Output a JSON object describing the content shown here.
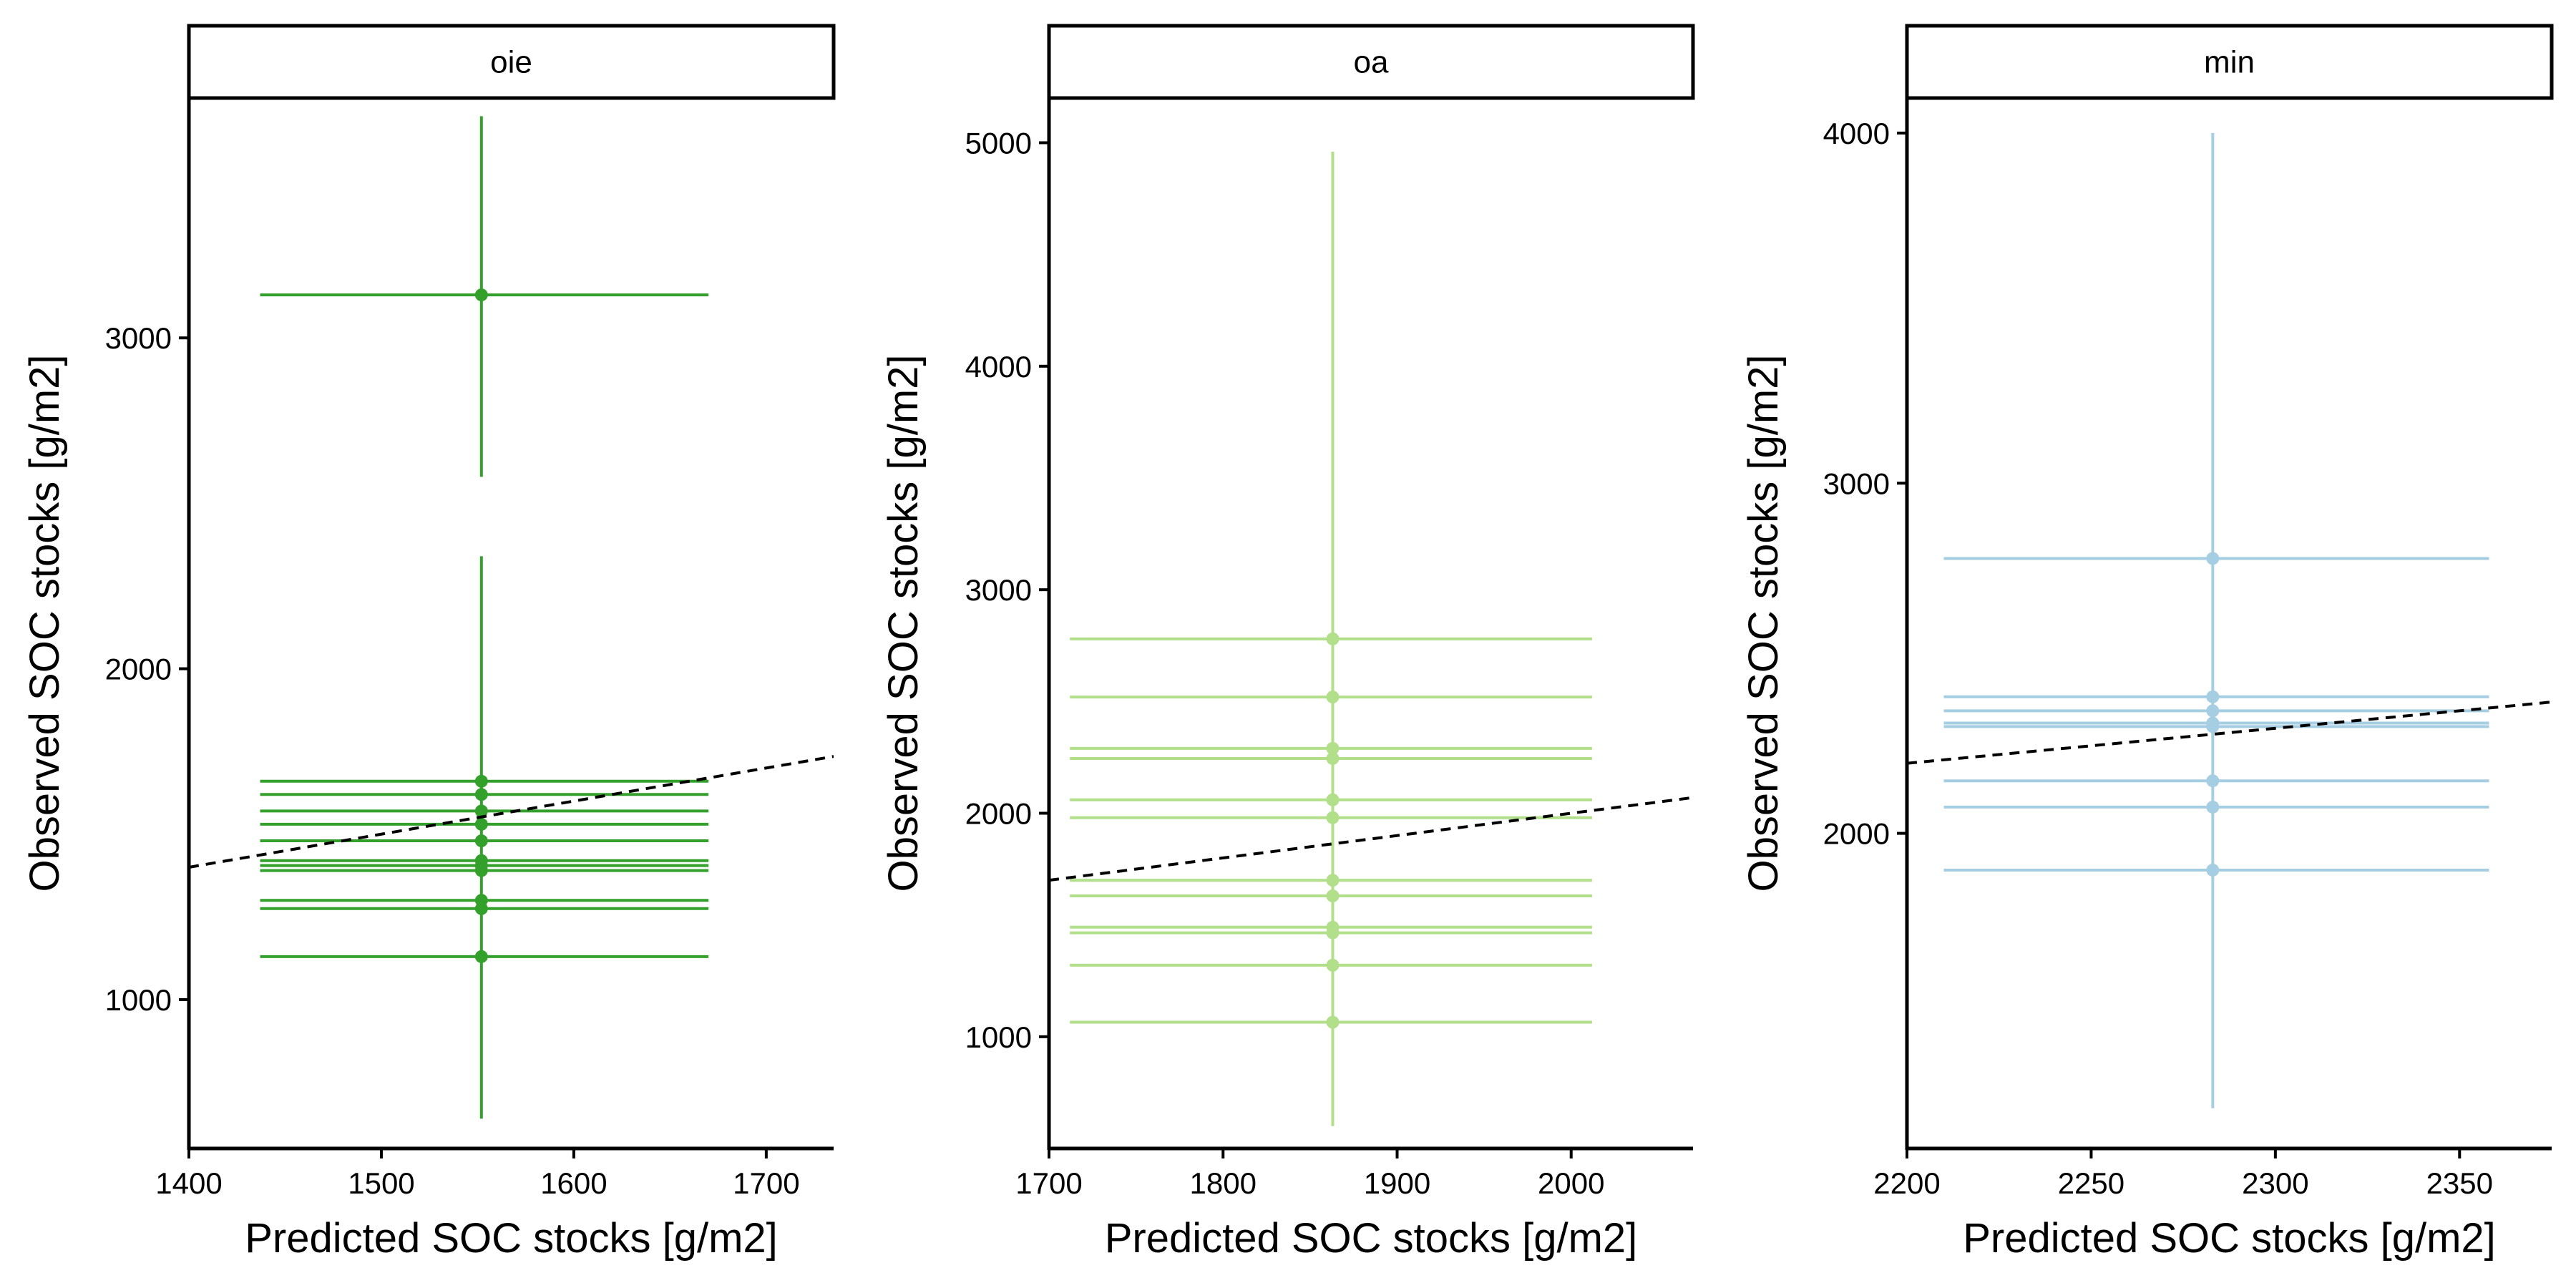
{
  "chart_data": [
    {
      "type": "scatter",
      "panel_label": "oie",
      "xlabel": "Predicted SOC stocks [g/m2]",
      "ylabel": "Observed SOC stocks [g/m2]",
      "xlim": [
        1400,
        1735
      ],
      "ylim": [
        550,
        3725
      ],
      "xticks": [
        1400,
        1500,
        1600,
        1700
      ],
      "yticks": [
        1000,
        2000,
        3000
      ],
      "color": "#33a02c",
      "reference_line": {
        "style": "dashed",
        "color": "#000000",
        "from": [
          1400,
          1400
        ],
        "to": [
          1735,
          1735
        ]
      },
      "points": [
        {
          "x": 1552,
          "y": 3130,
          "x_err": [
            1437,
            1670
          ],
          "y_err": [
            2580,
            3670
          ]
        },
        {
          "x": 1552,
          "y": 1660,
          "x_err": [
            1437,
            1670
          ],
          "y_err": [
            640,
            2340
          ]
        },
        {
          "x": 1552,
          "y": 1620,
          "x_err": [
            1437,
            1670
          ]
        },
        {
          "x": 1552,
          "y": 1570,
          "x_err": [
            1437,
            1670
          ]
        },
        {
          "x": 1552,
          "y": 1530,
          "x_err": [
            1437,
            1670
          ]
        },
        {
          "x": 1552,
          "y": 1480,
          "x_err": [
            1437,
            1670
          ]
        },
        {
          "x": 1552,
          "y": 1420,
          "x_err": [
            1437,
            1670
          ]
        },
        {
          "x": 1552,
          "y": 1405,
          "x_err": [
            1437,
            1670
          ]
        },
        {
          "x": 1552,
          "y": 1390,
          "x_err": [
            1437,
            1670
          ]
        },
        {
          "x": 1552,
          "y": 1300,
          "x_err": [
            1437,
            1670
          ]
        },
        {
          "x": 1552,
          "y": 1275,
          "x_err": [
            1437,
            1670
          ]
        },
        {
          "x": 1552,
          "y": 1130,
          "x_err": [
            1437,
            1670
          ]
        }
      ]
    },
    {
      "type": "scatter",
      "panel_label": "oa",
      "xlabel": "Predicted SOC stocks [g/m2]",
      "ylabel": "Observed SOC stocks [g/m2]",
      "xlim": [
        1700,
        2070
      ],
      "ylim": [
        500,
        5200
      ],
      "xticks": [
        1700,
        1800,
        1900,
        2000
      ],
      "yticks": [
        1000,
        2000,
        3000,
        4000,
        5000
      ],
      "color": "#b2df8a",
      "reference_line": {
        "style": "dashed",
        "color": "#000000",
        "from": [
          1700,
          1700
        ],
        "to": [
          2070,
          2070
        ]
      },
      "points": [
        {
          "x": 1863,
          "y": 2780,
          "x_err": [
            1712,
            2012
          ],
          "y_err": [
            600,
            4960
          ]
        },
        {
          "x": 1863,
          "y": 2520,
          "x_err": [
            1712,
            2012
          ]
        },
        {
          "x": 1863,
          "y": 2290,
          "x_err": [
            1712,
            2012
          ]
        },
        {
          "x": 1863,
          "y": 2245,
          "x_err": [
            1712,
            2012
          ]
        },
        {
          "x": 1863,
          "y": 2060,
          "x_err": [
            1712,
            2012
          ]
        },
        {
          "x": 1863,
          "y": 1980,
          "x_err": [
            1712,
            2012
          ]
        },
        {
          "x": 1863,
          "y": 1700,
          "x_err": [
            1712,
            2012
          ]
        },
        {
          "x": 1863,
          "y": 1630,
          "x_err": [
            1712,
            2012
          ]
        },
        {
          "x": 1863,
          "y": 1490,
          "x_err": [
            1712,
            2012
          ]
        },
        {
          "x": 1863,
          "y": 1465,
          "x_err": [
            1712,
            2012
          ]
        },
        {
          "x": 1863,
          "y": 1320,
          "x_err": [
            1712,
            2012
          ]
        },
        {
          "x": 1863,
          "y": 1065,
          "x_err": [
            1712,
            2012
          ]
        }
      ]
    },
    {
      "type": "scatter",
      "panel_label": "min",
      "xlabel": "Predicted SOC stocks [g/m2]",
      "ylabel": "Observed SOC stocks [g/m2]",
      "xlim": [
        2200,
        2375
      ],
      "ylim": [
        1100,
        4100
      ],
      "xticks": [
        2200,
        2250,
        2300,
        2350
      ],
      "yticks": [
        2000,
        3000,
        4000
      ],
      "color": "#a6cee3",
      "reference_line": {
        "style": "dashed",
        "color": "#000000",
        "from": [
          2200,
          2200
        ],
        "to": [
          2375,
          2375
        ]
      },
      "points": [
        {
          "x": 2283,
          "y": 2785,
          "x_err": [
            2210,
            2358
          ],
          "y_err": [
            1215,
            4000
          ]
        },
        {
          "x": 2283,
          "y": 2390,
          "x_err": [
            2210,
            2358
          ]
        },
        {
          "x": 2283,
          "y": 2350,
          "x_err": [
            2210,
            2358
          ]
        },
        {
          "x": 2283,
          "y": 2315,
          "x_err": [
            2210,
            2358
          ]
        },
        {
          "x": 2283,
          "y": 2305,
          "x_err": [
            2210,
            2358
          ]
        },
        {
          "x": 2283,
          "y": 2150,
          "x_err": [
            2210,
            2358
          ]
        },
        {
          "x": 2283,
          "y": 2075,
          "x_err": [
            2210,
            2358
          ]
        },
        {
          "x": 2283,
          "y": 1895,
          "x_err": [
            2210,
            2358
          ]
        }
      ]
    }
  ]
}
